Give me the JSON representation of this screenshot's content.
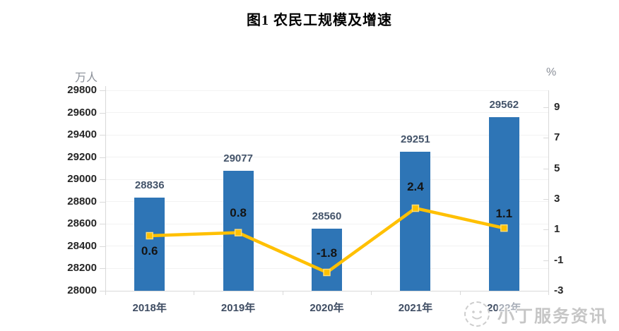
{
  "page": {
    "background": "#ffffff"
  },
  "chart_data": {
    "type": "combo",
    "title": "图1  农民工规模及增速",
    "categories": [
      "2018年",
      "2019年",
      "2020年",
      "2021年",
      "2022年"
    ],
    "series": [
      {
        "chart_type": "bar",
        "axis": "left",
        "values": [
          28836,
          29077,
          28560,
          29251,
          29562
        ],
        "color": "#2E75B6",
        "label_color": "#44546A"
      },
      {
        "chart_type": "line",
        "axis": "right",
        "values": [
          0.6,
          0.8,
          -1.8,
          2.4,
          1.1
        ],
        "color": "#FFC000",
        "marker": "square",
        "marker_border": "#FFDC73",
        "label_color": "#141414",
        "label_dy": [
          22,
          -28,
          -27,
          -30,
          -20
        ]
      }
    ],
    "axes": {
      "left": {
        "unit_label": "万人",
        "min": 28000,
        "max": 29800,
        "ticks": [
          29800,
          29600,
          29400,
          29200,
          29000,
          28800,
          28600,
          28400,
          28200,
          28000
        ]
      },
      "right": {
        "unit_label": "%",
        "min": -3,
        "max": 10.11,
        "ticks": [
          9,
          7,
          5,
          3,
          1,
          -1,
          -3
        ]
      }
    },
    "gridlines": true,
    "legend_position": "none"
  },
  "watermark": {
    "text": "小丁服务资讯",
    "logo": "cartoon-face-logo"
  }
}
